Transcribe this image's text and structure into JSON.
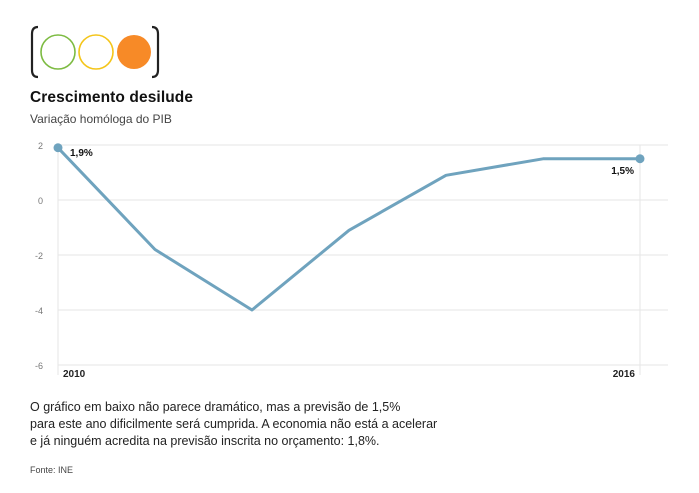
{
  "indicator": {
    "colors": {
      "green": "#7dbb42",
      "yellow": "#f4c51a",
      "orange": "#f78a27",
      "bracket": "#222222"
    }
  },
  "title": "Crescimento desilude",
  "subtitle": "Variação homóloga do PIB",
  "chart_data": {
    "type": "line",
    "title": "Crescimento desilude",
    "subtitle": "Variação homóloga do PIB",
    "x": [
      0,
      1,
      2,
      3,
      4,
      5,
      6
    ],
    "x_tick_labels": [
      "2010",
      "2016"
    ],
    "series": [
      {
        "values": [
          1.9,
          -1.8,
          -4.0,
          -1.1,
          0.9,
          1.5,
          1.5
        ]
      }
    ],
    "point_labels": [
      "1,9%",
      "1,5%"
    ],
    "y_ticks": [
      "2",
      "0",
      "-2",
      "-4",
      "-6"
    ],
    "ylim": [
      -6,
      2
    ],
    "grid": true,
    "line_color": "#6fa3be",
    "grid_color": "#e6e6e6"
  },
  "caption": {
    "lines": [
      "O gráfico em baixo não parece dramático, mas a previsão de 1,5%",
      "para este ano dificilmente será cumprida. A economia não está a acelerar",
      "e já ninguém acredita na previsão inscrita no orçamento: 1,8%."
    ]
  },
  "source": "Fonte: INE"
}
